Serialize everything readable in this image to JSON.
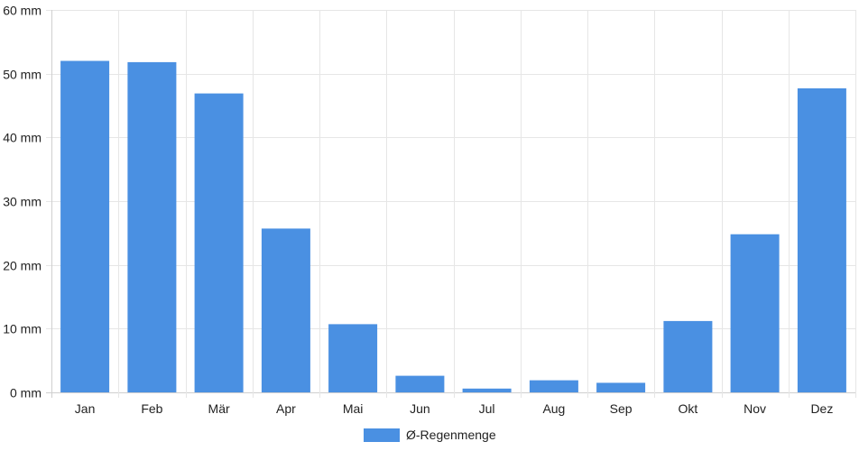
{
  "chart_data": {
    "type": "bar",
    "categories": [
      "Jan",
      "Feb",
      "Mär",
      "Apr",
      "Mai",
      "Jun",
      "Jul",
      "Aug",
      "Sep",
      "Okt",
      "Nov",
      "Dez"
    ],
    "series": [
      {
        "name": "Ø-Regenmenge",
        "values": [
          52,
          51.8,
          46.9,
          25.7,
          10.7,
          2.6,
          0.6,
          1.9,
          1.5,
          11.2,
          24.8,
          47.7
        ],
        "color": "#4a90e2"
      }
    ],
    "yticks": [
      "0 mm",
      "10 mm",
      "20 mm",
      "30 mm",
      "40 mm",
      "50 mm",
      "60 mm"
    ],
    "ylim": [
      0,
      60
    ],
    "grid": true,
    "legend_position": "bottom"
  }
}
